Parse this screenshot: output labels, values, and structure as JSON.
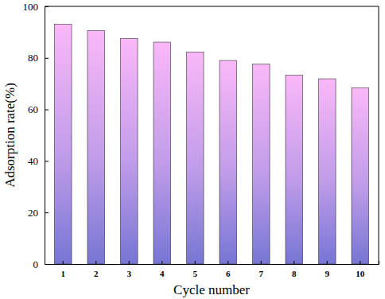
{
  "chart_data": {
    "type": "bar",
    "x_label": "Cycle number",
    "y_label": "Adsorption rate(%)",
    "categories": [
      "1",
      "2",
      "3",
      "4",
      "5",
      "6",
      "7",
      "8",
      "9",
      "10"
    ],
    "values": [
      93.0,
      90.6,
      87.5,
      86.1,
      82.3,
      79.0,
      77.6,
      73.3,
      71.9,
      68.4
    ],
    "color": "#fab8f8",
    "ylim": [
      0,
      100
    ],
    "yticks": [
      0,
      20,
      40,
      60,
      80,
      100
    ],
    "grid": false
  }
}
